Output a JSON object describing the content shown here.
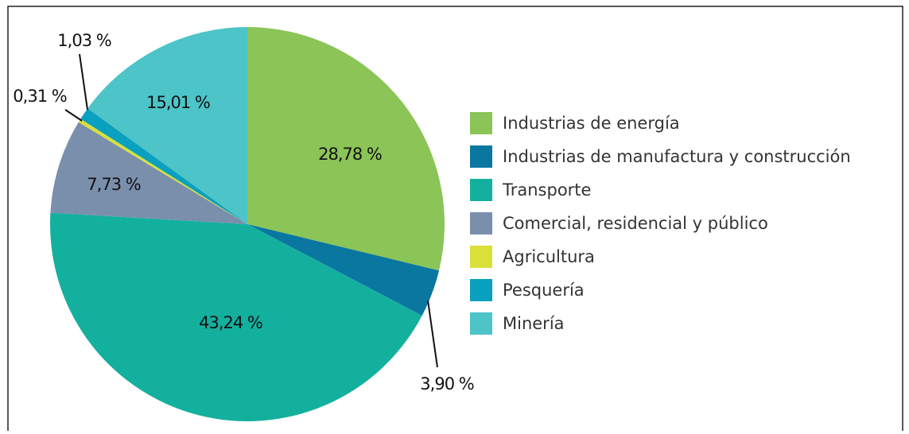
{
  "chart_data": {
    "type": "pie",
    "categories": [
      "Industrias de energía",
      "Industrias de manufactura y construcción",
      "Transporte",
      "Comercial, residencial y público",
      "Agricultura",
      "Pesquería",
      "Minería"
    ],
    "values": [
      28.78,
      3.9,
      43.24,
      7.73,
      0.31,
      1.03,
      15.01
    ],
    "value_labels": [
      "28,78 %",
      "3,90 %",
      "43,24 %",
      "7,73 %",
      "0,31 %",
      "1,03 %",
      "15,01 %"
    ],
    "colors": [
      "#8bc457",
      "#0a77a0",
      "#14b09e",
      "#7a8fac",
      "#d9e03a",
      "#0aa0c0",
      "#4cc4c8"
    ],
    "legend": "right"
  }
}
